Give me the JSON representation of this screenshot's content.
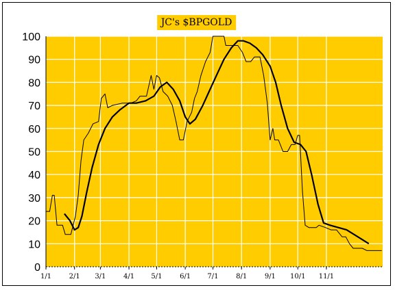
{
  "chart_data": {
    "type": "line",
    "title": "JC's $BPGOLD",
    "xlabel": "",
    "ylabel": "",
    "ylim": [
      0,
      100
    ],
    "yticks": [
      0,
      10,
      20,
      30,
      40,
      50,
      60,
      70,
      80,
      90,
      100
    ],
    "xticks": [
      "1/1",
      "2/1",
      "3/1",
      "4/1",
      "5/1",
      "6/1",
      "7/1",
      "8/1",
      "9/1",
      "10/1",
      "11/1"
    ],
    "x_range": [
      "1/1",
      "12/31"
    ],
    "grid": true,
    "background_color": "#FFCC00",
    "grid_color": "#FFFFFF",
    "series": [
      {
        "style": "thin",
        "color": "#000000",
        "points": [
          [
            "1/1",
            24
          ],
          [
            "1/5",
            24
          ],
          [
            "1/8",
            31
          ],
          [
            "1/10",
            31
          ],
          [
            "1/13",
            18
          ],
          [
            "1/19",
            18
          ],
          [
            "1/22",
            14
          ],
          [
            "1/28",
            14
          ],
          [
            "2/2",
            22
          ],
          [
            "2/5",
            31
          ],
          [
            "2/8",
            46
          ],
          [
            "2/11",
            55
          ],
          [
            "2/16",
            58
          ],
          [
            "2/21",
            62
          ],
          [
            "2/27",
            63
          ],
          [
            "3/2",
            73
          ],
          [
            "3/6",
            75
          ],
          [
            "3/9",
            69
          ],
          [
            "3/14",
            70
          ],
          [
            "3/25",
            71
          ],
          [
            "4/3",
            71
          ],
          [
            "4/9",
            72
          ],
          [
            "4/13",
            74
          ],
          [
            "4/20",
            74
          ],
          [
            "4/25",
            83
          ],
          [
            "4/28",
            77
          ],
          [
            "5/1",
            83
          ],
          [
            "5/4",
            82
          ],
          [
            "5/8",
            76
          ],
          [
            "5/13",
            74
          ],
          [
            "5/18",
            70
          ],
          [
            "5/22",
            63
          ],
          [
            "5/26",
            55
          ],
          [
            "5/30",
            55
          ],
          [
            "6/3",
            63
          ],
          [
            "6/8",
            67
          ],
          [
            "6/11",
            73
          ],
          [
            "6/14",
            76
          ],
          [
            "6/18",
            83
          ],
          [
            "6/23",
            89
          ],
          [
            "6/28",
            93
          ],
          [
            "7/1",
            100
          ],
          [
            "7/13",
            100
          ],
          [
            "7/15",
            96
          ],
          [
            "7/28",
            96
          ],
          [
            "8/2",
            93
          ],
          [
            "8/6",
            89
          ],
          [
            "8/11",
            89
          ],
          [
            "8/15",
            91
          ],
          [
            "8/21",
            91
          ],
          [
            "8/25",
            83
          ],
          [
            "8/29",
            71
          ],
          [
            "9/1",
            55
          ],
          [
            "9/4",
            60
          ],
          [
            "9/6",
            55
          ],
          [
            "9/10",
            55
          ],
          [
            "9/15",
            50
          ],
          [
            "9/20",
            50
          ],
          [
            "9/24",
            53
          ],
          [
            "9/28",
            53
          ],
          [
            "10/1",
            57
          ],
          [
            "10/3",
            57
          ],
          [
            "10/6",
            33
          ],
          [
            "10/9",
            18
          ],
          [
            "10/13",
            17
          ],
          [
            "10/21",
            17
          ],
          [
            "10/24",
            18
          ],
          [
            "10/31",
            17
          ],
          [
            "11/6",
            16
          ],
          [
            "11/12",
            16
          ],
          [
            "11/18",
            13
          ],
          [
            "11/22",
            13
          ],
          [
            "11/26",
            10
          ],
          [
            "11/30",
            8
          ],
          [
            "12/10",
            8
          ],
          [
            "12/15",
            7
          ],
          [
            "12/31",
            7
          ]
        ]
      },
      {
        "style": "thick",
        "color": "#000000",
        "points": [
          [
            "1/21",
            23
          ],
          [
            "1/27",
            20
          ],
          [
            "2/1",
            16
          ],
          [
            "2/5",
            17
          ],
          [
            "2/9",
            22
          ],
          [
            "2/14",
            32
          ],
          [
            "2/20",
            43
          ],
          [
            "2/27",
            53
          ],
          [
            "3/6",
            60
          ],
          [
            "3/14",
            65
          ],
          [
            "3/22",
            68
          ],
          [
            "4/1",
            71
          ],
          [
            "4/9",
            71
          ],
          [
            "4/19",
            72
          ],
          [
            "4/28",
            74
          ],
          [
            "5/5",
            78
          ],
          [
            "5/12",
            80
          ],
          [
            "5/19",
            77
          ],
          [
            "5/26",
            72
          ],
          [
            "6/1",
            65
          ],
          [
            "6/6",
            62
          ],
          [
            "6/12",
            64
          ],
          [
            "6/20",
            70
          ],
          [
            "6/28",
            77
          ],
          [
            "7/6",
            84
          ],
          [
            "7/13",
            90
          ],
          [
            "7/21",
            95
          ],
          [
            "7/28",
            98
          ],
          [
            "8/3",
            98
          ],
          [
            "8/10",
            97
          ],
          [
            "8/17",
            95
          ],
          [
            "8/24",
            92
          ],
          [
            "9/1",
            87
          ],
          [
            "9/7",
            80
          ],
          [
            "9/13",
            70
          ],
          [
            "9/20",
            60
          ],
          [
            "9/27",
            54
          ],
          [
            "10/4",
            53
          ],
          [
            "10/10",
            50
          ],
          [
            "10/16",
            40
          ],
          [
            "10/23",
            27
          ],
          [
            "10/29",
            19
          ],
          [
            "11/5",
            18
          ],
          [
            "11/14",
            17
          ],
          [
            "11/23",
            16
          ],
          [
            "12/1",
            14
          ],
          [
            "12/9",
            12
          ],
          [
            "12/17",
            10
          ]
        ]
      }
    ]
  }
}
